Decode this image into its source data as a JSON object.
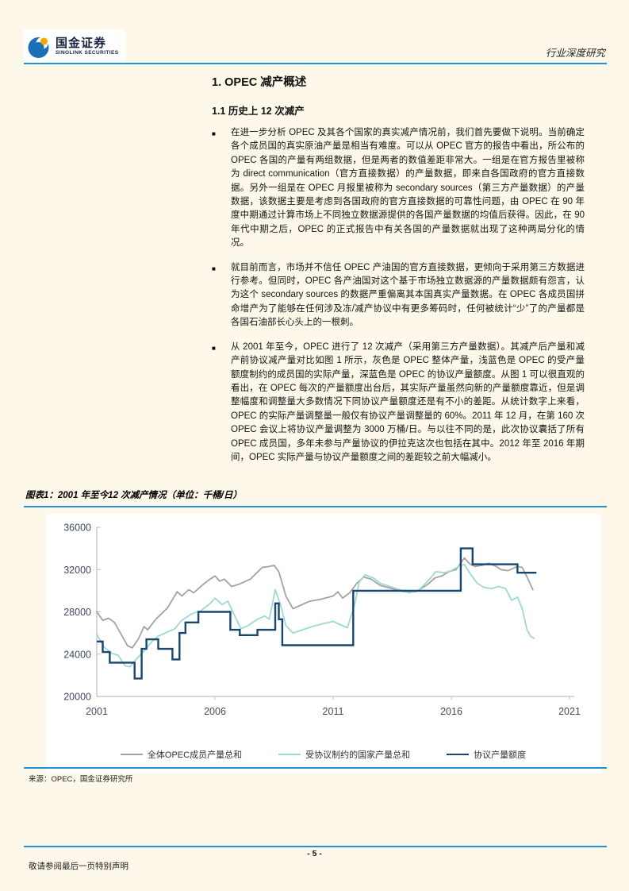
{
  "header": {
    "logo_cn": "国金证券",
    "logo_en": "SINOLINK SECURITIES",
    "doc_type": "行业深度研究"
  },
  "section": {
    "h1": "1. OPEC 减产概述",
    "h2": "1.1 历史上 12 次减产"
  },
  "ui": {
    "bullet_char": "■"
  },
  "bullets": [
    "在进一步分析 OPEC 及其各个国家的真实减产情况前，我们首先要做下说明。当前确定各个成员国的真实原油产量是相当有难度。可以从 OPEC 官方的报告中看出，所公布的 OPEC 各国的产量有两组数据，但是两者的数值差距非常大。一组是在官方报告里被称为 direct communication（官方直接数据）的产量数据，即来自各国政府的官方直接数据。另外一组是在 OPEC 月报里被称为 secondary sources（第三方产量数据）的产量数据，该数据主要是考虑到各国政府的官方直接数据的可靠性问题，由 OPEC 在 90 年度中期通过计算市场上不同独立数据源提供的各国产量数据的均值后获得。因此，在 90 年代中期之后，OPEC 的正式报告中有关各国的产量数据就出现了这种两局分化的情况。",
    "就目前而言，市场并不信任 OPEC 产油国的官方直接数据，更倾向于采用第三方数据进行参考。但同时，OPEC 各产油国对这个基于市场独立数据源的产量数据颇有怨言，认为这个 secondary sources 的数据严重偏离其本国真实产量数据。在 OPEC 各成员国拼命增产为了能够在任何涉及冻/减产协议中有更多筹码时，任何被统计“少”了的产量都是各国石油部长心头上的一根刺。",
    "从 2001 年至今，OPEC 进行了 12 次减产（采用第三方产量数据）。其减产后产量和减产前协议减产量对比如图 1 所示，灰色是 OPEC 整体产量，浅蓝色是 OPEC 的受产量额度制约的成员国的实际产量，深蓝色是 OPEC 的协议产量额度。从图 1 可以很直观的看出，在 OPEC 每次的产量额度出台后，其实际产量虽然向新的产量额度靠近，但是调整幅度和调整量大多数情况下同协议产量额度还是有不小的差距。从统计数字上来看，OPEC 的实际产量调整量一般仅有协议产量调整量的 60%。2011 年 12 月，在第 160 次 OPEC 会议上将协议产量调整为 3000 万桶/日。与以往不同的是，此次协议囊括了所有 OPEC 成员国，多年未参与产量协议的伊拉克这次也包括在其中。2012 年至 2016 年期间，OPEC 实际产量与协议产量额度之间的差距较之前大幅减小。"
  ],
  "figure": {
    "title": "图表1：2001 年至今12 次减产情况（单位：千桶/日）",
    "source": "来源：OPEC，国金证券研究所"
  },
  "footer": {
    "page_number": "- 5 -",
    "disclaimer": "敬请参阅最后一页特别声明"
  },
  "colors": {
    "accent_blue": "#1E94D2",
    "page_background": "#FDF8E9",
    "series_gray": "#A3A3A3",
    "series_teal": "#9FD8D2",
    "series_navy": "#17466F",
    "axis_gray": "#BFBFBF",
    "axis_label": "#3F4A5F"
  },
  "chart_data": {
    "type": "line",
    "title": "图表1：2001 年至今12 次减产情况",
    "unit": "千桶/日",
    "xlabel": "",
    "ylabel": "",
    "xlim": [
      2001,
      2021
    ],
    "ylim": [
      20000,
      36000
    ],
    "yticks": [
      20000,
      24000,
      28000,
      32000,
      36000
    ],
    "xticks": [
      2001,
      2006,
      2011,
      2016,
      2021
    ],
    "grid": false,
    "legend_position": "bottom",
    "series": [
      {
        "name": "全体OPEC成员产量总和",
        "color": "#A3A3A3",
        "style": "line",
        "points": [
          [
            2001.0,
            28000
          ],
          [
            2001.25,
            27200
          ],
          [
            2001.5,
            27400
          ],
          [
            2001.75,
            27000
          ],
          [
            2002.0,
            26000
          ],
          [
            2002.3,
            24800
          ],
          [
            2002.5,
            24600
          ],
          [
            2002.75,
            25400
          ],
          [
            2003.0,
            26600
          ],
          [
            2003.15,
            26300
          ],
          [
            2003.5,
            27300
          ],
          [
            2004.0,
            28400
          ],
          [
            2004.4,
            29900
          ],
          [
            2004.6,
            29500
          ],
          [
            2004.9,
            30100
          ],
          [
            2005.1,
            29800
          ],
          [
            2005.5,
            30600
          ],
          [
            2005.8,
            31100
          ],
          [
            2006.0,
            31400
          ],
          [
            2006.2,
            30900
          ],
          [
            2006.4,
            31100
          ],
          [
            2006.7,
            30400
          ],
          [
            2007.0,
            30600
          ],
          [
            2007.5,
            31100
          ],
          [
            2008.0,
            32200
          ],
          [
            2008.3,
            32300
          ],
          [
            2008.5,
            32400
          ],
          [
            2008.7,
            31800
          ],
          [
            2009.0,
            29500
          ],
          [
            2009.3,
            28300
          ],
          [
            2009.6,
            28600
          ],
          [
            2010.0,
            29000
          ],
          [
            2010.5,
            29200
          ],
          [
            2011.0,
            29500
          ],
          [
            2011.2,
            29900
          ],
          [
            2011.4,
            29300
          ],
          [
            2011.7,
            29800
          ],
          [
            2012.0,
            30700
          ],
          [
            2012.3,
            31300
          ],
          [
            2012.6,
            31100
          ],
          [
            2013.0,
            30500
          ],
          [
            2013.5,
            30200
          ],
          [
            2014.0,
            29900
          ],
          [
            2014.5,
            29900
          ],
          [
            2015.0,
            30600
          ],
          [
            2015.3,
            31200
          ],
          [
            2015.6,
            31400
          ],
          [
            2015.9,
            31800
          ],
          [
            2016.2,
            32000
          ],
          [
            2016.55,
            33100
          ],
          [
            2016.8,
            32500
          ],
          [
            2017.0,
            32300
          ],
          [
            2017.3,
            32400
          ],
          [
            2017.6,
            32600
          ],
          [
            2017.9,
            32300
          ],
          [
            2018.1,
            32000
          ],
          [
            2018.4,
            31900
          ],
          [
            2018.8,
            32300
          ],
          [
            2019.0,
            32200
          ],
          [
            2019.2,
            31300
          ],
          [
            2019.45,
            30100
          ]
        ]
      },
      {
        "name": "受协议制约的国家产量总和",
        "color": "#9FD8D2",
        "style": "line",
        "points": [
          [
            2001.0,
            25900
          ],
          [
            2001.3,
            24700
          ],
          [
            2001.6,
            24100
          ],
          [
            2001.9,
            23900
          ],
          [
            2002.2,
            22900
          ],
          [
            2002.4,
            22800
          ],
          [
            2002.7,
            23600
          ],
          [
            2003.0,
            24300
          ],
          [
            2003.3,
            25100
          ],
          [
            2003.6,
            25700
          ],
          [
            2004.0,
            26100
          ],
          [
            2004.3,
            26400
          ],
          [
            2004.6,
            27200
          ],
          [
            2005.0,
            27800
          ],
          [
            2005.4,
            28100
          ],
          [
            2005.8,
            28800
          ],
          [
            2006.0,
            29300
          ],
          [
            2006.3,
            28700
          ],
          [
            2006.55,
            29000
          ],
          [
            2006.8,
            27800
          ],
          [
            2007.1,
            26400
          ],
          [
            2007.4,
            26700
          ],
          [
            2007.8,
            27300
          ],
          [
            2008.1,
            27600
          ],
          [
            2008.3,
            27300
          ],
          [
            2008.55,
            30100
          ],
          [
            2008.8,
            28500
          ],
          [
            2009.0,
            26700
          ],
          [
            2009.3,
            26000
          ],
          [
            2009.7,
            26300
          ],
          [
            2010.1,
            26600
          ],
          [
            2010.6,
            26900
          ],
          [
            2011.0,
            27100
          ],
          [
            2011.3,
            26800
          ],
          [
            2011.6,
            26500
          ],
          [
            2011.9,
            28600
          ],
          [
            2012.1,
            30800
          ],
          [
            2012.35,
            31500
          ],
          [
            2012.7,
            31200
          ],
          [
            2013.0,
            30700
          ],
          [
            2013.4,
            30400
          ],
          [
            2013.8,
            30100
          ],
          [
            2014.2,
            29800
          ],
          [
            2014.6,
            30000
          ],
          [
            2015.0,
            30900
          ],
          [
            2015.35,
            31800
          ],
          [
            2015.7,
            31700
          ],
          [
            2016.0,
            31900
          ],
          [
            2016.3,
            32300
          ],
          [
            2016.55,
            32500
          ],
          [
            2016.8,
            31600
          ],
          [
            2017.1,
            30700
          ],
          [
            2017.4,
            30300
          ],
          [
            2017.7,
            30200
          ],
          [
            2018.0,
            30400
          ],
          [
            2018.3,
            30200
          ],
          [
            2018.55,
            29100
          ],
          [
            2018.8,
            29400
          ],
          [
            2019.0,
            28300
          ],
          [
            2019.2,
            26300
          ],
          [
            2019.35,
            25700
          ],
          [
            2019.5,
            25500
          ]
        ]
      },
      {
        "name": "协议产量额度",
        "color": "#17466F",
        "style": "step",
        "segments": [
          [
            2001.0,
            2001.25,
            25200
          ],
          [
            2001.25,
            2001.55,
            24200
          ],
          [
            2001.55,
            2002.6,
            23200
          ],
          [
            2002.6,
            2002.9,
            21700
          ],
          [
            2002.9,
            2003.1,
            24500
          ],
          [
            2003.1,
            2003.6,
            25400
          ],
          [
            2003.6,
            2004.2,
            24500
          ],
          [
            2004.2,
            2004.5,
            23500
          ],
          [
            2004.5,
            2004.75,
            26000
          ],
          [
            2004.75,
            2005.3,
            27000
          ],
          [
            2005.3,
            2006.65,
            28000
          ],
          [
            2006.65,
            2007.05,
            26300
          ],
          [
            2007.05,
            2007.8,
            25800
          ],
          [
            2007.8,
            2008.55,
            26300
          ],
          [
            2008.55,
            2008.7,
            28800
          ],
          [
            2008.7,
            2008.85,
            27300
          ],
          [
            2008.85,
            2011.85,
            24845
          ],
          [
            2011.85,
            2016.4,
            30000
          ],
          [
            2016.4,
            2016.9,
            34000
          ],
          [
            2016.9,
            2018.8,
            32500
          ],
          [
            2018.8,
            2019.6,
            31700
          ]
        ]
      }
    ]
  }
}
